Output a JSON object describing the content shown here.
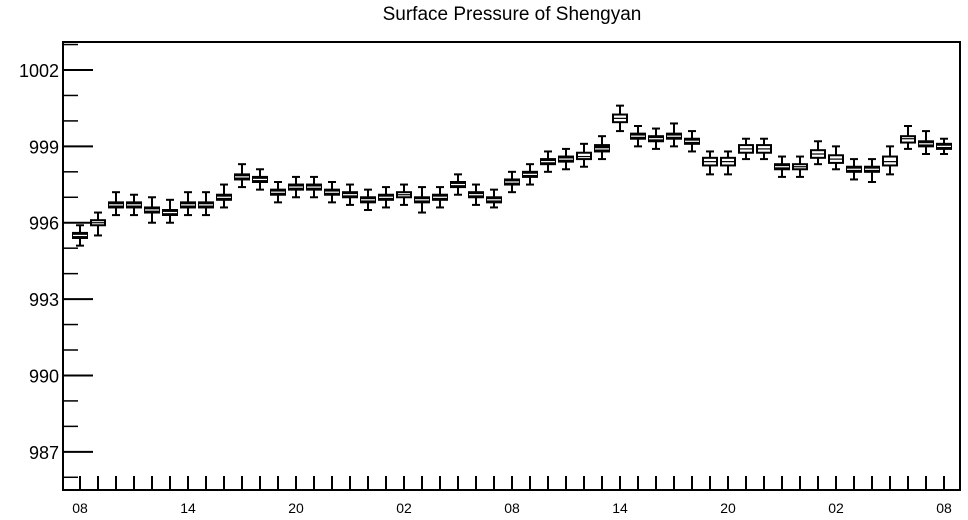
{
  "chart_data": {
    "type": "boxplot",
    "title": "Surface Pressure of Shengyan",
    "xlabel": "",
    "ylabel": "",
    "ylim": [
      985.5,
      1003.1
    ],
    "yticks": [
      987,
      990,
      993,
      996,
      999,
      1002
    ],
    "ytick_labels": [
      "987",
      "990",
      "993",
      "996",
      "999",
      "1002"
    ],
    "xtick_labels": [
      "08",
      "14",
      "20",
      "02",
      "08",
      "14",
      "20",
      "02",
      "08"
    ],
    "xtick_positions": [
      0,
      6,
      12,
      18,
      24,
      30,
      36,
      42,
      48
    ],
    "grid": false,
    "x": [
      0,
      1,
      2,
      3,
      4,
      5,
      6,
      7,
      8,
      9,
      10,
      11,
      12,
      13,
      14,
      15,
      16,
      17,
      18,
      19,
      20,
      21,
      22,
      23,
      24,
      25,
      26,
      27,
      28,
      29,
      30,
      31,
      32,
      33,
      34,
      35,
      36,
      37,
      38,
      39,
      40,
      41,
      42,
      43,
      44,
      45,
      46,
      47,
      48
    ],
    "median": [
      995.5,
      996.0,
      996.7,
      996.7,
      996.5,
      996.4,
      996.7,
      996.7,
      997.0,
      997.8,
      997.7,
      997.2,
      997.4,
      997.4,
      997.2,
      997.1,
      996.9,
      997.0,
      997.1,
      996.9,
      997.0,
      997.5,
      997.1,
      996.9,
      997.6,
      997.9,
      998.4,
      998.5,
      998.6,
      998.9,
      1000.1,
      999.4,
      999.3,
      999.4,
      999.2,
      998.4,
      998.4,
      998.9,
      998.9,
      998.2,
      998.2,
      998.7,
      998.5,
      998.1,
      998.1,
      998.4,
      999.3,
      999.1,
      999.0
    ],
    "q1": [
      995.4,
      995.9,
      996.6,
      996.6,
      996.4,
      996.35,
      996.6,
      996.6,
      996.9,
      997.7,
      997.6,
      997.1,
      997.3,
      997.3,
      997.1,
      997.0,
      996.8,
      996.9,
      997.0,
      996.8,
      996.9,
      997.4,
      997.0,
      996.8,
      997.5,
      997.8,
      998.3,
      998.4,
      998.5,
      998.8,
      999.95,
      999.3,
      999.2,
      999.3,
      999.1,
      998.25,
      998.25,
      998.75,
      998.75,
      998.1,
      998.1,
      998.55,
      998.35,
      998.0,
      998.0,
      998.25,
      999.15,
      999.0,
      998.9
    ],
    "q3": [
      995.6,
      996.1,
      996.8,
      996.8,
      996.6,
      996.5,
      996.8,
      996.8,
      997.1,
      997.9,
      997.8,
      997.3,
      997.5,
      997.5,
      997.3,
      997.2,
      997.0,
      997.1,
      997.2,
      997.0,
      997.1,
      997.6,
      997.2,
      997.0,
      997.7,
      998.0,
      998.5,
      998.6,
      998.75,
      999.05,
      1000.25,
      999.5,
      999.4,
      999.5,
      999.3,
      998.55,
      998.55,
      999.05,
      999.05,
      998.3,
      998.3,
      998.85,
      998.65,
      998.2,
      998.2,
      998.6,
      999.4,
      999.2,
      999.1
    ],
    "whisker_low": [
      995.1,
      995.5,
      996.3,
      996.3,
      996.0,
      996.0,
      996.3,
      996.3,
      996.6,
      997.4,
      997.3,
      996.8,
      997.0,
      997.0,
      996.8,
      996.7,
      996.5,
      996.6,
      996.7,
      996.4,
      996.6,
      997.1,
      996.7,
      996.6,
      997.2,
      997.5,
      998.0,
      998.1,
      998.2,
      998.5,
      999.6,
      999.0,
      998.9,
      999.0,
      998.8,
      997.9,
      997.9,
      998.5,
      998.5,
      997.8,
      997.8,
      998.3,
      998.1,
      997.7,
      997.6,
      997.9,
      998.9,
      998.7,
      998.7
    ],
    "whisker_high": [
      995.9,
      996.4,
      997.2,
      997.1,
      997.0,
      996.9,
      997.2,
      997.2,
      997.5,
      998.3,
      998.1,
      997.6,
      997.8,
      997.8,
      997.6,
      997.5,
      997.3,
      997.4,
      997.5,
      997.4,
      997.4,
      997.9,
      997.5,
      997.3,
      998.0,
      998.3,
      998.8,
      998.9,
      999.1,
      999.4,
      1000.6,
      999.8,
      999.7,
      999.9,
      999.6,
      998.8,
      998.8,
      999.3,
      999.3,
      998.6,
      998.6,
      999.2,
      999.0,
      998.5,
      998.5,
      999.0,
      999.8,
      999.6,
      999.3
    ],
    "box_fill": [
      1,
      0,
      1,
      1,
      1,
      1,
      1,
      1,
      1,
      1,
      1,
      1,
      1,
      1,
      1,
      1,
      1,
      1,
      0,
      1,
      1,
      1,
      1,
      1,
      1,
      1,
      1,
      1,
      0,
      1,
      0,
      1,
      1,
      1,
      1,
      0,
      0,
      0,
      0,
      1,
      0,
      0,
      0,
      1,
      1,
      0,
      0,
      1,
      1
    ]
  }
}
